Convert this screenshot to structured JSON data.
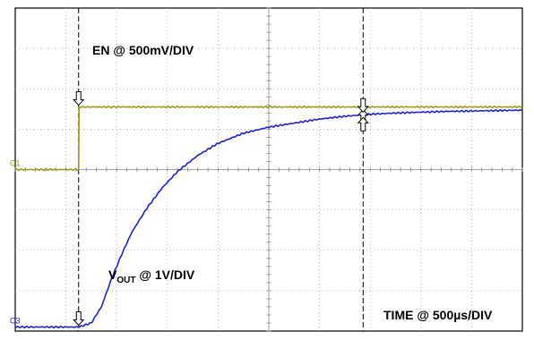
{
  "chart_data": {
    "type": "line",
    "title": "",
    "xlabel": "",
    "ylabel": "",
    "grid": true,
    "xlim": [
      0,
      10
    ],
    "ylim": [
      0,
      8
    ],
    "x_divisions": 10,
    "y_divisions": 8,
    "annotations": {
      "en": "EN @ 500mV/DIV",
      "vout_main": "V",
      "vout_sub": "OUT",
      "vout_tail": " @ 1V/DIV",
      "time": "TIME @ 500µs/DIV"
    },
    "series": [
      {
        "name": "",
        "channel_label": "C1",
        "color": "#9a9a1a",
        "x": [
          0,
          1.25,
          1.26,
          2,
          4,
          6,
          8,
          10
        ],
        "y": [
          4.0,
          4.0,
          5.55,
          5.55,
          5.55,
          5.55,
          5.55,
          5.55
        ]
      },
      {
        "name": "",
        "channel_label": "C3",
        "color": "#1f1fd6",
        "x": [
          0,
          0.5,
          1.0,
          1.25,
          1.5,
          1.7,
          1.9,
          2.1,
          2.3,
          2.6,
          2.9,
          3.2,
          3.6,
          4.0,
          4.5,
          5.0,
          5.5,
          6.0,
          6.5,
          7.0,
          7.5,
          8.0,
          8.5,
          9.0,
          9.5,
          10.0
        ],
        "y": [
          0.1,
          0.1,
          0.1,
          0.1,
          0.2,
          0.6,
          1.3,
          1.9,
          2.45,
          3.05,
          3.55,
          3.95,
          4.35,
          4.65,
          4.9,
          5.05,
          5.15,
          5.25,
          5.32,
          5.37,
          5.4,
          5.42,
          5.44,
          5.45,
          5.46,
          5.47
        ]
      }
    ],
    "cursors": [
      {
        "x": 1.25
      },
      {
        "x": 6.86
      }
    ]
  }
}
